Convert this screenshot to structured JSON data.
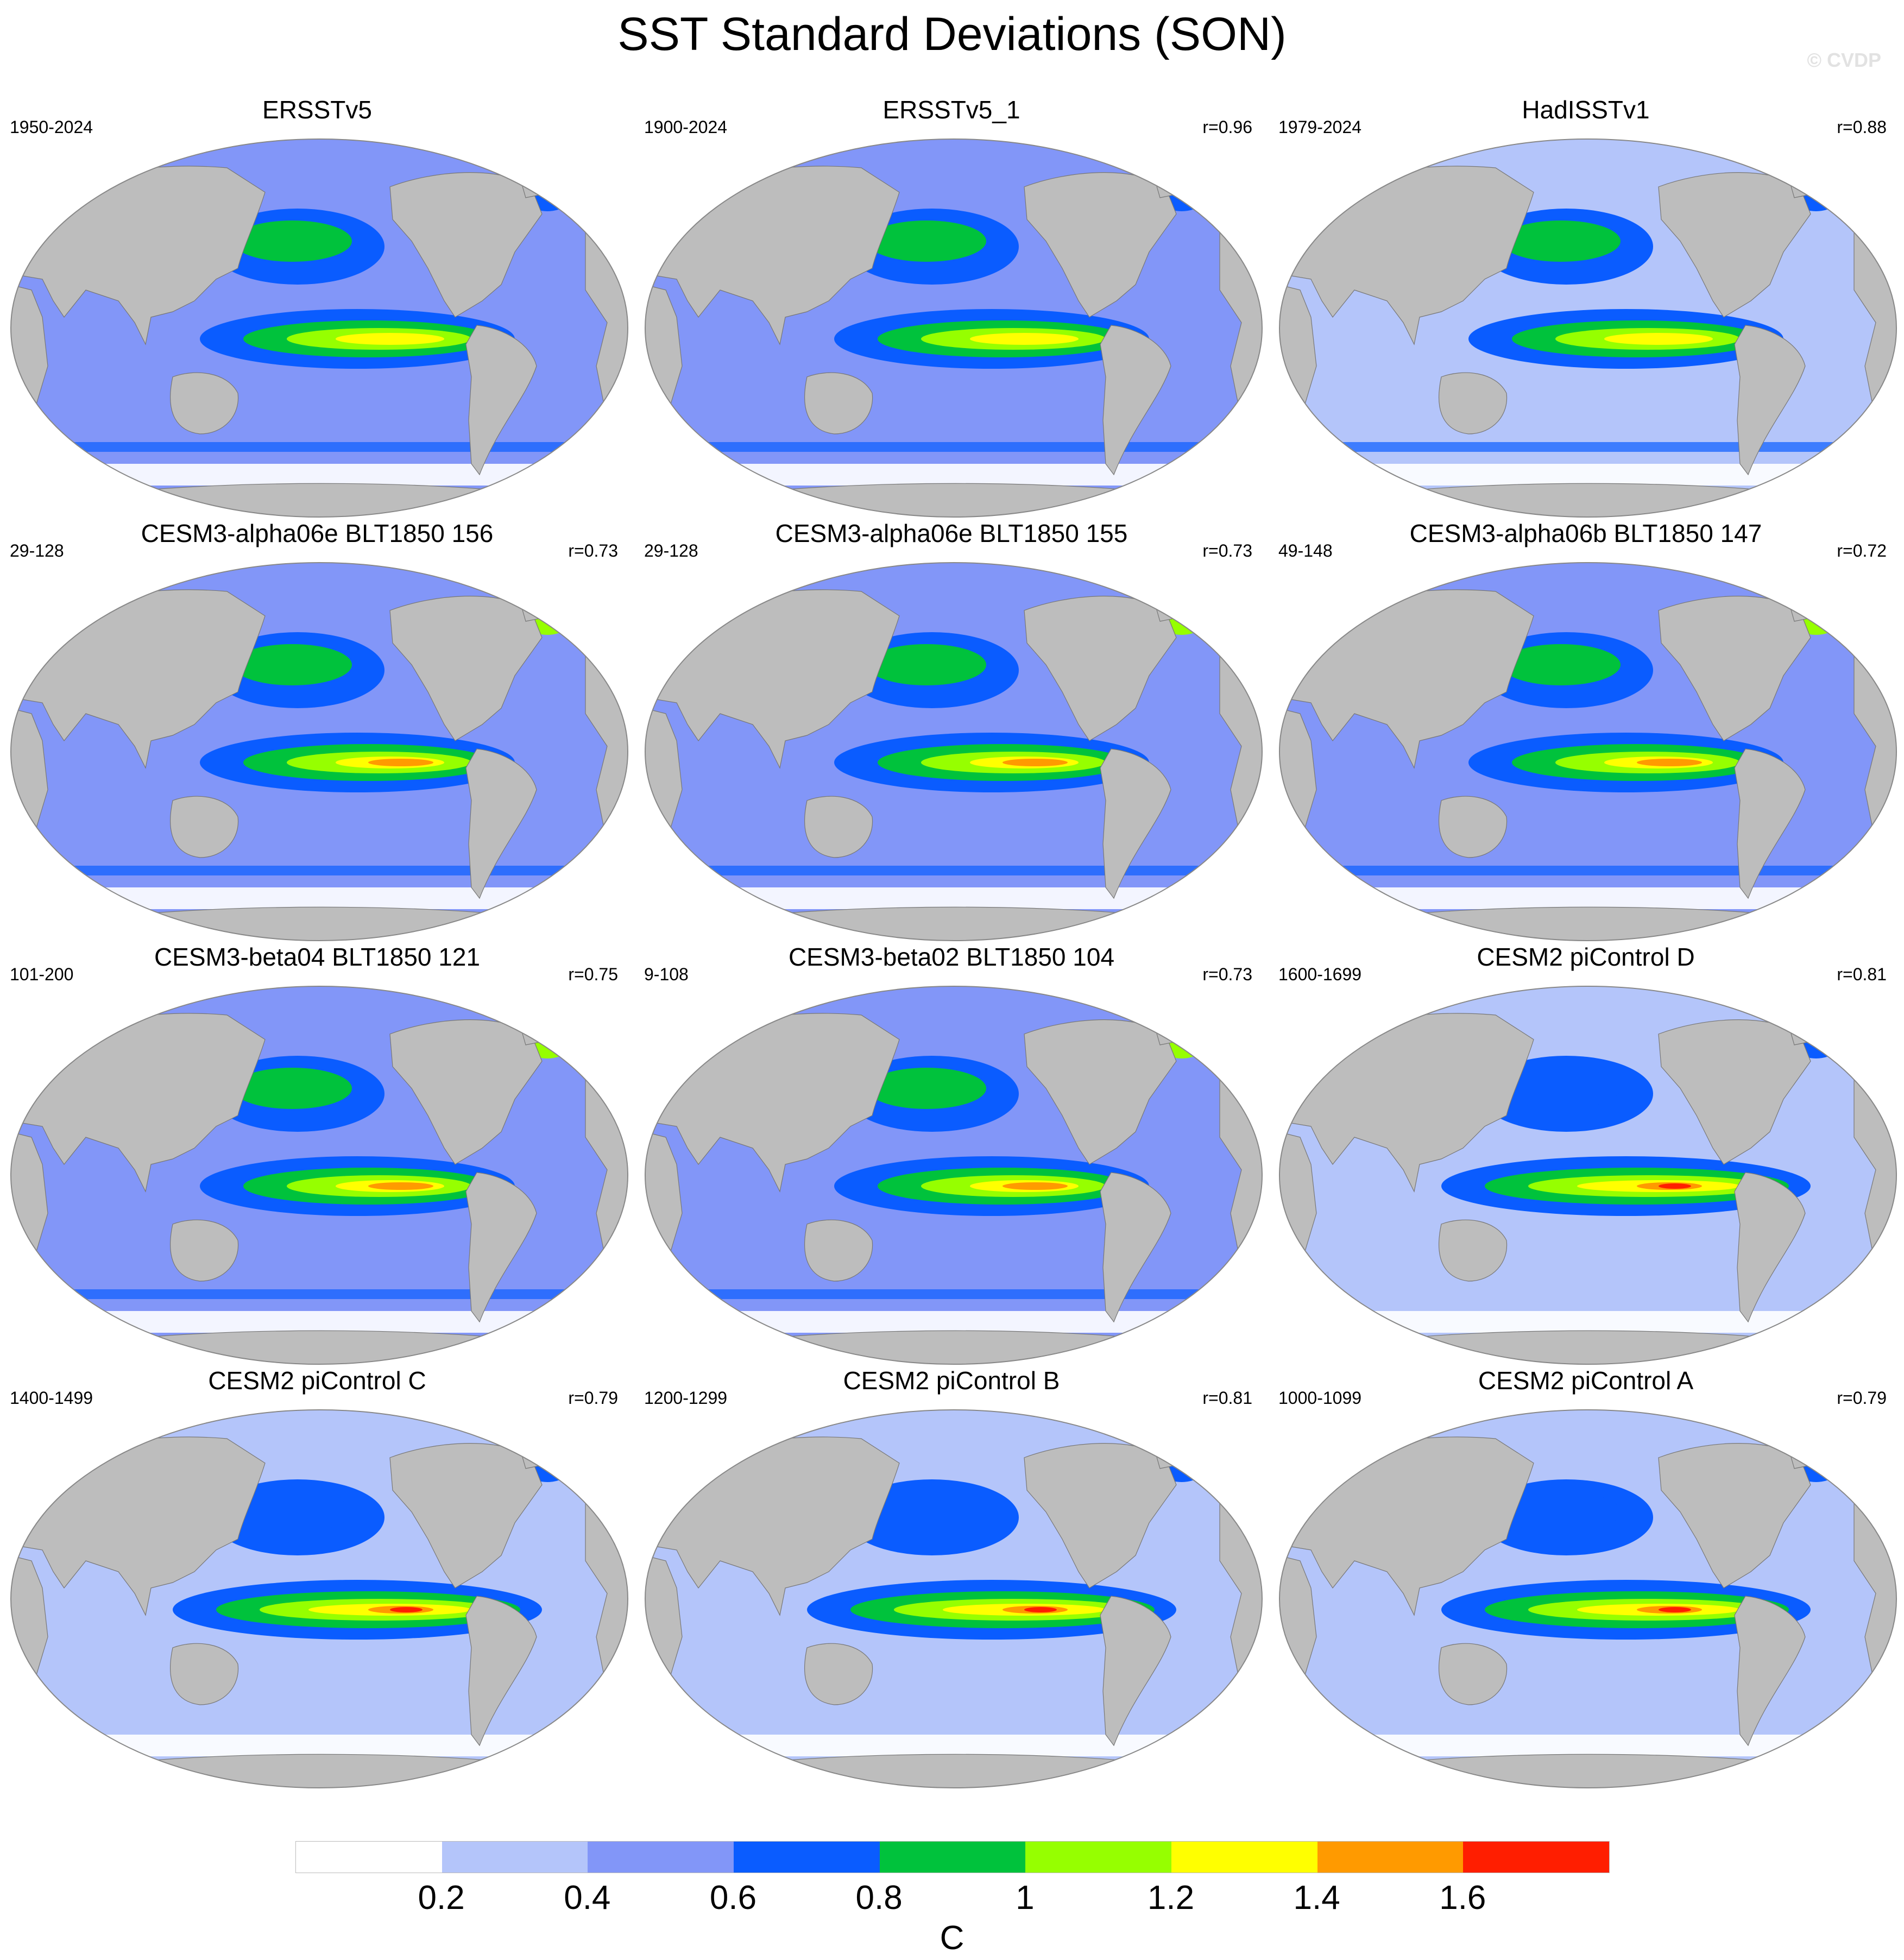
{
  "title": "SST Standard Deviations (SON)",
  "watermark": "© CVDP",
  "panels": [
    {
      "title": "ERSSTv5",
      "years": "1950-2024",
      "r": ""
    },
    {
      "title": "ERSSTv5_1",
      "years": "1900-2024",
      "r": "r=0.96"
    },
    {
      "title": "HadISSTv1",
      "years": "1979-2024",
      "r": "r=0.88"
    },
    {
      "title": "CESM3-alpha06e BLT1850 156",
      "years": "29-128",
      "r": "r=0.73"
    },
    {
      "title": "CESM3-alpha06e BLT1850 155",
      "years": "29-128",
      "r": "r=0.73"
    },
    {
      "title": "CESM3-alpha06b BLT1850 147",
      "years": "49-148",
      "r": "r=0.72"
    },
    {
      "title": "CESM3-beta04 BLT1850 121",
      "years": "101-200",
      "r": "r=0.75"
    },
    {
      "title": "CESM3-beta02 BLT1850 104",
      "years": "9-108",
      "r": "r=0.73"
    },
    {
      "title": "CESM2 piControl D",
      "years": "1600-1699",
      "r": "r=0.81"
    },
    {
      "title": "CESM2 piControl C",
      "years": "1400-1499",
      "r": "r=0.79"
    },
    {
      "title": "CESM2 piControl B",
      "years": "1200-1299",
      "r": "r=0.81"
    },
    {
      "title": "CESM2 piControl A",
      "years": "1000-1099",
      "r": "r=0.79"
    }
  ],
  "colorbar": {
    "colors": [
      "#ffffff",
      "#b4c5fa",
      "#8296f8",
      "#0a5cff",
      "#00c23c",
      "#96ff00",
      "#ffff00",
      "#ff9a00",
      "#ff1e00"
    ],
    "labels": [
      "0.2",
      "0.4",
      "0.6",
      "0.8",
      "1",
      "1.2",
      "1.4",
      "1.6"
    ],
    "units": "C"
  },
  "colors": {
    "land": "#bdbdbd",
    "ocean_base": "#8296f8"
  }
}
